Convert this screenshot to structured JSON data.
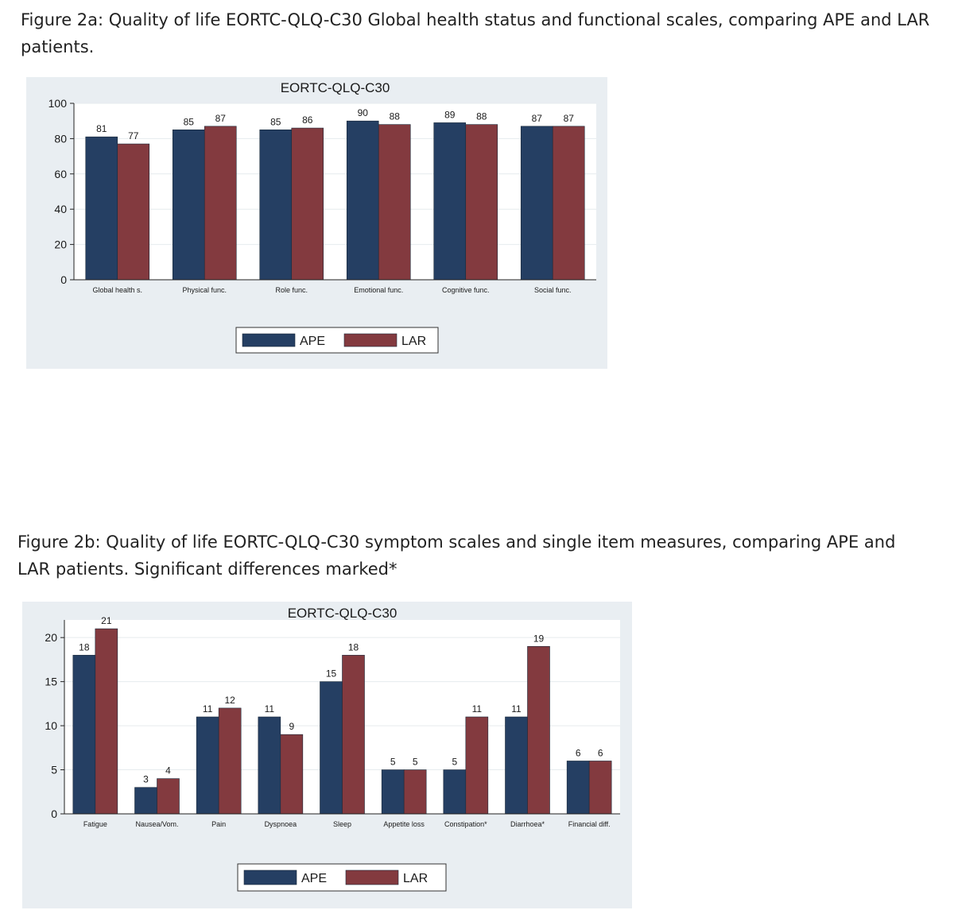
{
  "captions": {
    "fig_a": "Figure 2a: Quality of life EORTC-QLQ-C30 Global health status and functional scales, comparing APE and LAR patients.",
    "fig_b": "Figure 2b: Quality of life EORTC-QLQ-C30 symptom scales and single item measures, comparing APE and LAR patients. Significant differences marked*"
  },
  "colors": {
    "ape": "#253f63",
    "lar": "#833a3f",
    "panel": "#e9eef2",
    "plot": "#ffffff",
    "grid": "#e6ebee"
  },
  "chart_data": [
    {
      "type": "bar",
      "title": "EORTC-QLQ-C30",
      "categories": [
        "Global health s.",
        "Physical func.",
        "Role func.",
        "Emotional func.",
        "Cognitive func.",
        "Social func."
      ],
      "series": [
        {
          "name": "APE",
          "values": [
            81,
            85,
            85,
            90,
            89,
            87
          ]
        },
        {
          "name": "LAR",
          "values": [
            77,
            87,
            86,
            88,
            88,
            87
          ]
        }
      ],
      "ylim": [
        0,
        100
      ],
      "yticks": [
        0,
        20,
        40,
        60,
        80,
        100
      ],
      "xlabel": "",
      "ylabel": "",
      "grid": true,
      "legend": "bottom"
    },
    {
      "type": "bar",
      "title": "EORTC-QLQ-C30",
      "categories": [
        "Fatigue",
        "Nausea/Vom.",
        "Pain",
        "Dyspnoea",
        "Sleep",
        "Appetite loss",
        "Constipation*",
        "Diarrhoea*",
        "Financial diff."
      ],
      "series": [
        {
          "name": "APE",
          "values": [
            18,
            3,
            11,
            11,
            15,
            5,
            5,
            11,
            6
          ]
        },
        {
          "name": "LAR",
          "values": [
            21,
            4,
            12,
            9,
            18,
            5,
            11,
            19,
            6
          ]
        }
      ],
      "ylim": [
        0,
        22
      ],
      "yticks": [
        0,
        5,
        10,
        15,
        20
      ],
      "xlabel": "",
      "ylabel": "",
      "grid": true,
      "legend": "bottom"
    }
  ]
}
